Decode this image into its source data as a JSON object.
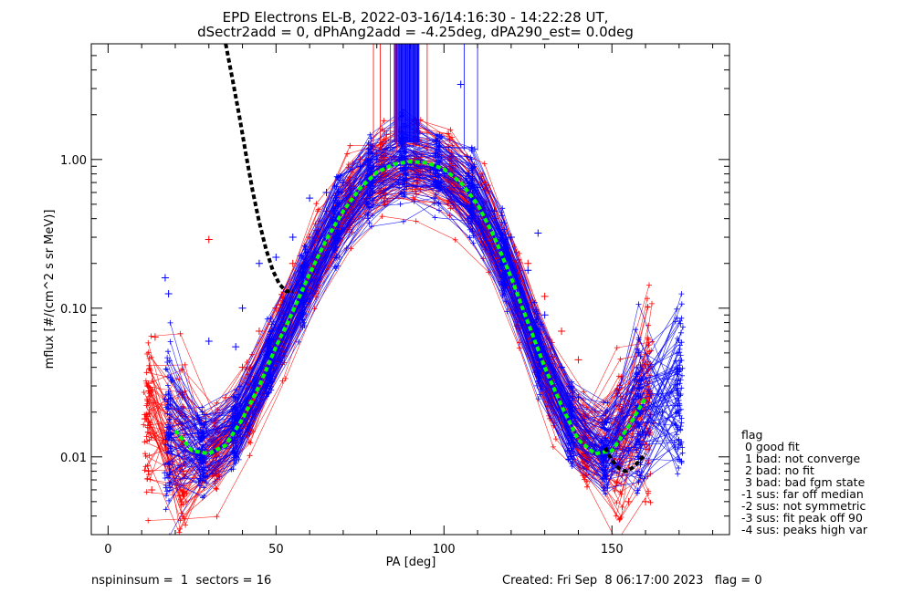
{
  "chart_data": {
    "type": "line",
    "title": "EPD Electrons EL-B, 2022-03-16/14:16:30 - 14:22:28 UT,",
    "subtitle": "dSectr2add = 0, dPhAng2add = -4.25deg, dPA290_est=   0.0deg",
    "xlabel": "PA [deg]",
    "ylabel": "mflux [#/(cm^2 s sr MeV)]",
    "xlim": [
      -5,
      185
    ],
    "ylim": [
      0.003,
      6.0
    ],
    "yscale": "log",
    "x_ticks": [
      0,
      50,
      100,
      150
    ],
    "x_tick_labels": [
      "0",
      "50",
      "100",
      "150"
    ],
    "y_ticks": [
      0.01,
      0.1,
      1.0
    ],
    "y_tick_labels": [
      "0.01",
      "0.10",
      "1.00"
    ],
    "grid": false,
    "colors": {
      "red": "#ff0000",
      "blue": "#0000ff",
      "black": "#000000",
      "green": "#00ff00"
    },
    "series": [
      {
        "color": "green",
        "style": "dashed",
        "x": [
          20,
          25,
          30,
          35,
          40,
          45,
          50,
          55,
          60,
          65,
          70,
          75,
          80,
          85,
          90,
          95,
          100,
          105,
          110,
          115,
          120,
          125,
          130,
          135,
          140,
          145,
          150,
          155,
          160
        ],
        "y": [
          0.015,
          0.011,
          0.0105,
          0.012,
          0.018,
          0.03,
          0.055,
          0.095,
          0.17,
          0.29,
          0.45,
          0.64,
          0.82,
          0.93,
          0.97,
          0.95,
          0.86,
          0.7,
          0.5,
          0.3,
          0.16,
          0.08,
          0.04,
          0.022,
          0.013,
          0.0105,
          0.011,
          0.016,
          0.025
        ]
      },
      {
        "color": "black",
        "style": "dashed",
        "x": [
          35,
          37,
          39,
          41,
          43,
          45,
          47,
          49,
          51,
          53,
          55
        ],
        "y": [
          6.0,
          3.5,
          2.0,
          1.1,
          0.62,
          0.38,
          0.25,
          0.18,
          0.145,
          0.13,
          0.13
        ]
      },
      {
        "color": "black",
        "style": "dashed",
        "x": [
          148,
          150,
          152,
          154,
          156,
          158,
          160
        ],
        "y": [
          0.0115,
          0.0095,
          0.0084,
          0.008,
          0.0084,
          0.0093,
          0.0105
        ]
      }
    ],
    "flux_bundle": {
      "description_points_blue": [
        [
          17,
          0.16
        ],
        [
          18,
          0.125
        ],
        [
          30,
          0.06
        ],
        [
          38,
          0.055
        ],
        [
          40,
          0.1
        ],
        [
          45,
          0.2
        ],
        [
          50,
          0.22
        ],
        [
          55,
          0.3
        ],
        [
          60,
          0.55
        ],
        [
          65,
          0.6
        ],
        [
          70,
          0.7
        ],
        [
          75,
          0.9
        ],
        [
          80,
          1.0
        ],
        [
          84,
          1.2
        ],
        [
          88,
          1.1
        ],
        [
          92,
          0.95
        ],
        [
          96,
          0.85
        ],
        [
          100,
          0.8
        ],
        [
          105,
          3.2
        ],
        [
          110,
          0.65
        ],
        [
          115,
          0.45
        ],
        [
          120,
          0.3
        ],
        [
          125,
          0.18
        ],
        [
          128,
          0.32
        ],
        [
          130,
          0.09
        ],
        [
          135,
          0.04
        ],
        [
          140,
          0.025
        ],
        [
          145,
          0.012
        ],
        [
          150,
          0.009
        ],
        [
          155,
          0.011
        ],
        [
          160,
          0.014
        ],
        [
          165,
          0.02
        ],
        [
          170,
          0.012
        ]
      ],
      "description_points_red": [
        [
          11,
          0.018
        ],
        [
          12,
          0.008
        ],
        [
          13,
          0.006
        ],
        [
          14,
          0.064
        ],
        [
          22,
          0.013
        ],
        [
          30,
          0.29
        ],
        [
          35,
          0.025
        ],
        [
          40,
          0.04
        ],
        [
          45,
          0.07
        ],
        [
          50,
          0.1
        ],
        [
          55,
          0.2
        ],
        [
          60,
          0.3
        ],
        [
          65,
          0.45
        ],
        [
          70,
          0.7
        ],
        [
          75,
          1.0
        ],
        [
          80,
          1.1
        ],
        [
          85,
          1.05
        ],
        [
          90,
          0.95
        ],
        [
          95,
          1.2
        ],
        [
          100,
          0.85
        ],
        [
          105,
          0.7
        ],
        [
          110,
          0.55
        ],
        [
          115,
          0.4
        ],
        [
          120,
          0.3
        ],
        [
          125,
          0.2
        ],
        [
          130,
          0.12
        ],
        [
          135,
          0.07
        ],
        [
          140,
          0.045
        ],
        [
          145,
          0.02
        ],
        [
          150,
          0.008
        ],
        [
          155,
          0.005
        ],
        [
          160,
          0.005
        ]
      ]
    }
  },
  "legend": {
    "heading": "flag",
    "items": [
      " 0 good fit",
      " 1 bad: not converge",
      " 2 bad: no fit",
      " 3 bad: bad fgm state",
      "-1 sus: far off median",
      "-2 sus: not symmetric",
      "-3 sus: fit peak off 90",
      "-4 sus: peaks high var"
    ]
  },
  "footer": {
    "left": "nspininsum =  1  sectors = 16",
    "right": "Created: Fri Sep  8 06:17:00 2023   flag = 0"
  }
}
